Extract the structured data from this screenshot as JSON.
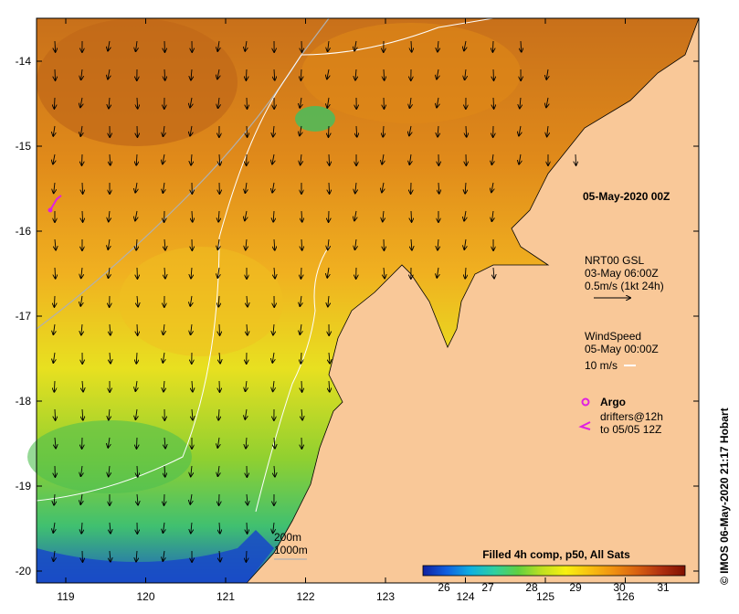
{
  "map": {
    "lon_ticks": [
      "119",
      "120",
      "121",
      "122",
      "123",
      "124",
      "125",
      "126"
    ],
    "lat_ticks": [
      "-14",
      "-15",
      "-16",
      "-17",
      "-18",
      "-19",
      "-20"
    ],
    "land_color": "#f9c898",
    "sea_color": "#e89020"
  },
  "annotations": {
    "date_title": "05-May-2020 00Z",
    "current_label": "NRT00 GSL",
    "current_time": "03-May 06:00Z",
    "current_scale": "0.5m/s (1kt 24h)",
    "wind_label": "WindSpeed",
    "wind_time": "05-May 00:00Z",
    "wind_scale": "10 m/s",
    "argo_label": "Argo",
    "drifters_label": "drifters@12h",
    "drifters_to": "to 05/05 12Z",
    "depth_200": "200m",
    "depth_1000": "1000m",
    "credit": "© IMOS 06-May-2020 21:17 Hobart"
  },
  "colorbar": {
    "title": "Filled 4h comp, p50, All Sats",
    "ticks": [
      "26",
      "27",
      "28",
      "29",
      "30",
      "31"
    ],
    "stops": [
      "#1020a0",
      "#1060e0",
      "#10b0e0",
      "#30d0a0",
      "#60d040",
      "#c0e020",
      "#f8f010",
      "#f8c010",
      "#f09010",
      "#d86010",
      "#b03010",
      "#801000"
    ]
  }
}
